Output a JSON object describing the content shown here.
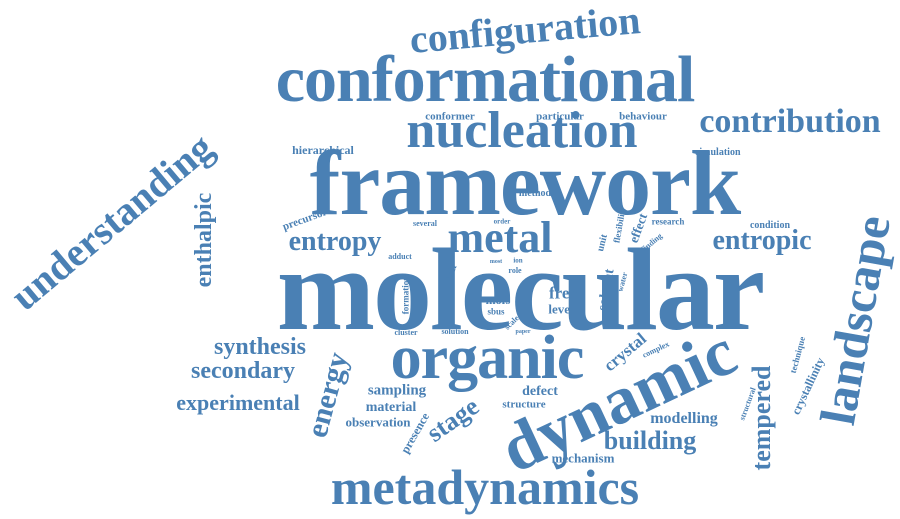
{
  "theme": {
    "word_color": "#4a80b4",
    "background": "#ffffff"
  },
  "words": [
    {
      "key": "molecular",
      "text": "molecular"
    },
    {
      "key": "framework",
      "text": "framework"
    },
    {
      "key": "conformational",
      "text": "conformational"
    },
    {
      "key": "nucleation",
      "text": "nucleation"
    },
    {
      "key": "configuration",
      "text": "configuration"
    },
    {
      "key": "contribution",
      "text": "contribution"
    },
    {
      "key": "understanding",
      "text": "understanding"
    },
    {
      "key": "landscape",
      "text": "landscape"
    },
    {
      "key": "organic",
      "text": "organic"
    },
    {
      "key": "dynamic",
      "text": "dynamic"
    },
    {
      "key": "metadynamics",
      "text": "metadynamics"
    },
    {
      "key": "metal",
      "text": "metal"
    },
    {
      "key": "entropy",
      "text": "entropy"
    },
    {
      "key": "entropic",
      "text": "entropic"
    },
    {
      "key": "enthalpic",
      "text": "enthalpic"
    },
    {
      "key": "synthesis",
      "text": "synthesis"
    },
    {
      "key": "secondary",
      "text": "secondary"
    },
    {
      "key": "experimental",
      "text": "experimental"
    },
    {
      "key": "energy",
      "text": "energy"
    },
    {
      "key": "tempered",
      "text": "tempered"
    },
    {
      "key": "building",
      "text": "building"
    },
    {
      "key": "stage",
      "text": "stage"
    },
    {
      "key": "modelling",
      "text": "modelling"
    },
    {
      "key": "crystal",
      "text": "crystal"
    },
    {
      "key": "free",
      "text": "free"
    },
    {
      "key": "level",
      "text": "level"
    },
    {
      "key": "sampling",
      "text": "sampling"
    },
    {
      "key": "material",
      "text": "material"
    },
    {
      "key": "observation",
      "text": "observation"
    },
    {
      "key": "defect",
      "text": "defect"
    },
    {
      "key": "structure",
      "text": "structure"
    },
    {
      "key": "presence",
      "text": "presence"
    },
    {
      "key": "mechanism",
      "text": "mechanism"
    },
    {
      "key": "hierarchical",
      "text": "hierarchical"
    },
    {
      "key": "conformer",
      "text": "conformer"
    },
    {
      "key": "particular",
      "text": "particular"
    },
    {
      "key": "behaviour",
      "text": "behaviour"
    },
    {
      "key": "simulation",
      "text": "simulation"
    },
    {
      "key": "method",
      "text": "method"
    },
    {
      "key": "precursor",
      "text": "precursor"
    },
    {
      "key": "several",
      "text": "several"
    },
    {
      "key": "order",
      "text": "order"
    },
    {
      "key": "research",
      "text": "research"
    },
    {
      "key": "condition",
      "text": "condition"
    },
    {
      "key": "unit",
      "text": "unit"
    },
    {
      "key": "flexibility",
      "text": "flexibility"
    },
    {
      "key": "effect",
      "text": "effect"
    },
    {
      "key": "finding",
      "text": "finding"
    },
    {
      "key": "adduct",
      "text": "adduct"
    },
    {
      "key": "half",
      "text": "half"
    },
    {
      "key": "formation",
      "text": "formation"
    },
    {
      "key": "most",
      "text": "most"
    },
    {
      "key": "ion",
      "text": "ion"
    },
    {
      "key": "role",
      "text": "role"
    },
    {
      "key": "self",
      "text": "self"
    },
    {
      "key": "mofs",
      "text": "mofs"
    },
    {
      "key": "sbus",
      "text": "sbus"
    },
    {
      "key": "water",
      "text": "water"
    },
    {
      "key": "solvent",
      "text": "solvent"
    },
    {
      "key": "scale",
      "text": "scale"
    },
    {
      "key": "paper",
      "text": "paper"
    },
    {
      "key": "cluster",
      "text": "cluster"
    },
    {
      "key": "solution",
      "text": "solution"
    },
    {
      "key": "complex",
      "text": "complex"
    },
    {
      "key": "technique",
      "text": "technique"
    },
    {
      "key": "crystallinity",
      "text": "crystallinity"
    },
    {
      "key": "structural",
      "text": "structural"
    }
  ]
}
